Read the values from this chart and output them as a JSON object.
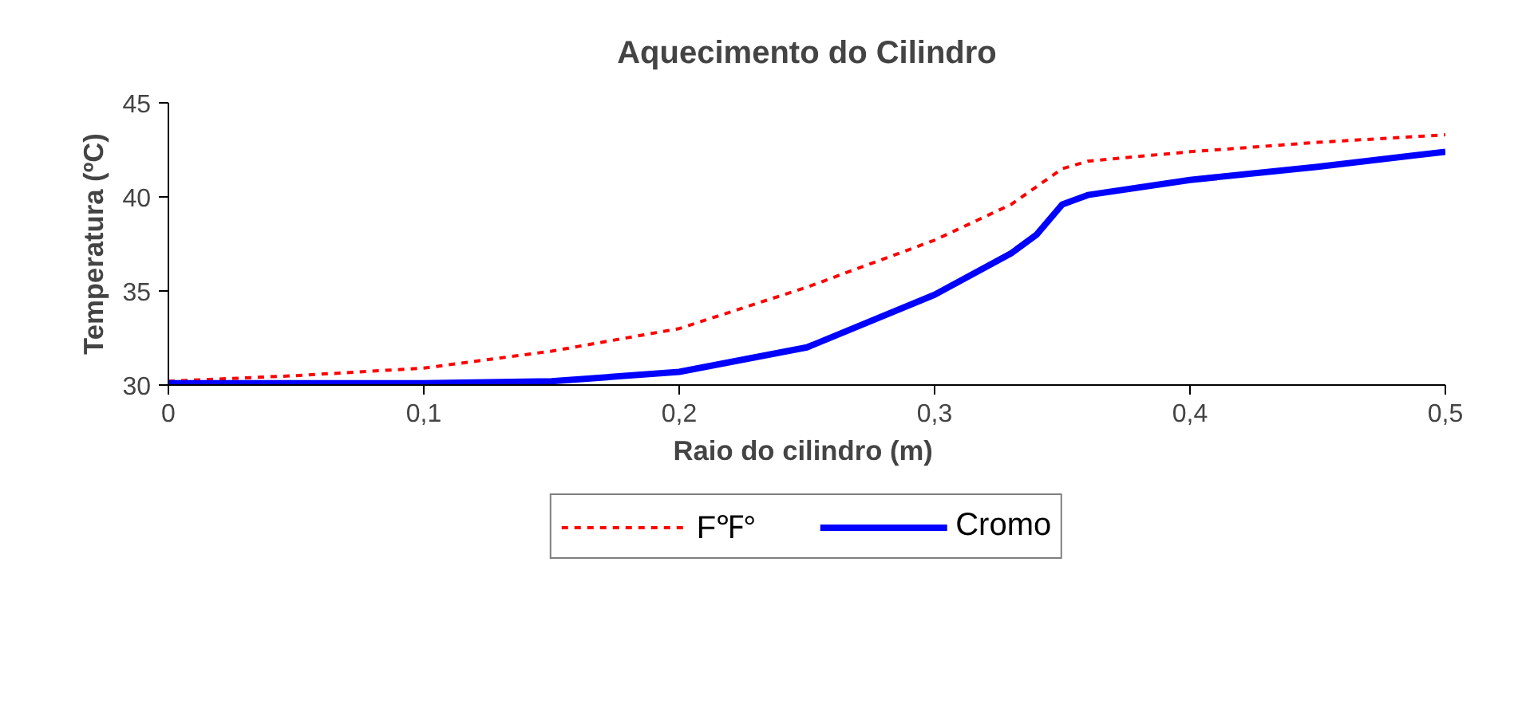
{
  "chart_data": {
    "type": "line",
    "title": "Aquecimento do Cilindro",
    "xlabel": "Raio do cilindro  (m)",
    "ylabel": "Temperatura (ºC)",
    "xlim": [
      0,
      0.5
    ],
    "xticks": [
      0,
      {
        "value": 0.1,
        "label": "0,1"
      },
      {
        "value": 0.2,
        "label": "0,2"
      },
      {
        "value": 0.3,
        "label": "0,3"
      },
      {
        "value": 0.4,
        "label": "0,4"
      },
      {
        "value": 0.5,
        "label": "0,5"
      }
    ],
    "ylim": [
      30,
      45
    ],
    "yticks": [
      30,
      35,
      40,
      45
    ],
    "grid": false,
    "legend": "bottom",
    "series": [
      {
        "name": "F℉°",
        "color": "#ff0000",
        "line_style": "dotted",
        "x": [
          0,
          0.05,
          0.1,
          0.15,
          0.2,
          0.25,
          0.3,
          0.33,
          0.35,
          0.36,
          0.4,
          0.45,
          0.5
        ],
        "values": [
          30.2,
          30.5,
          30.9,
          31.8,
          33.0,
          35.2,
          37.7,
          39.6,
          41.5,
          41.9,
          42.4,
          42.9,
          43.3
        ]
      },
      {
        "name": "Cromo",
        "color": "#0000ff",
        "line_style": "solid",
        "x": [
          0,
          0.05,
          0.1,
          0.15,
          0.2,
          0.25,
          0.3,
          0.33,
          0.34,
          0.35,
          0.36,
          0.4,
          0.45,
          0.5
        ],
        "values": [
          30.1,
          30.1,
          30.1,
          30.2,
          30.7,
          32.0,
          34.8,
          37.0,
          38.0,
          39.6,
          40.1,
          40.9,
          41.6,
          42.4
        ]
      }
    ]
  }
}
